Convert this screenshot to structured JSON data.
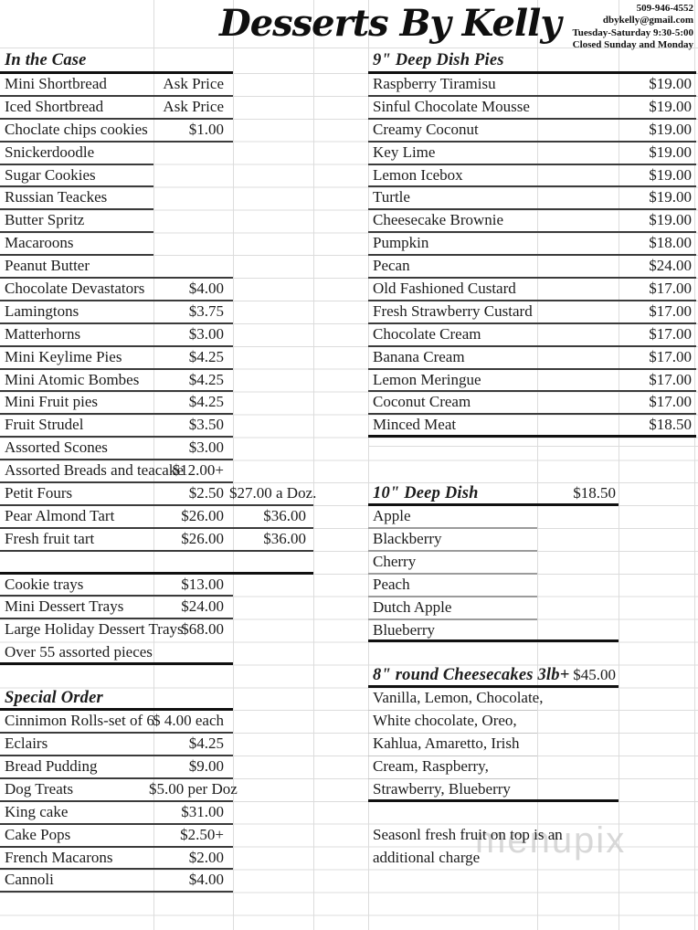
{
  "title": "Desserts By Kelly",
  "contact": {
    "phone": "509-946-4552",
    "email": "dbykelly@gmail.com",
    "hours": "Tuesday-Saturday 9:30-5:00",
    "closed": "Closed Sunday and Monday"
  },
  "watermark": "menupix",
  "left": {
    "in_the_case": {
      "heading": "In the Case",
      "items": [
        {
          "name": "Mini Shortbread",
          "price": "Ask Price",
          "u": "n255"
        },
        {
          "name": "Iced Shortbread",
          "price": "Ask Price",
          "u": "n255"
        },
        {
          "name": "Choclate chips cookies",
          "price": "$1.00",
          "u": "n255"
        },
        {
          "name": "Snickerdoodle",
          "u": "n168"
        },
        {
          "name": "Sugar Cookies",
          "u": "n168"
        },
        {
          "name": "Russian Teackes",
          "u": "n168"
        },
        {
          "name": "Butter Spritz",
          "u": "n168"
        },
        {
          "name": "Macaroons",
          "u": "n168"
        },
        {
          "name": "Peanut Butter",
          "u": "n255"
        },
        {
          "name": "Chocolate Devastators",
          "price": "$4.00",
          "u": "n255"
        },
        {
          "name": "Lamingtons",
          "price": "$3.75",
          "u": "n255"
        },
        {
          "name": "Matterhorns",
          "price": "$3.00",
          "u": "n255"
        },
        {
          "name": "Mini Keylime Pies",
          "price": "$4.25",
          "u": "n255"
        },
        {
          "name": "Mini Atomic Bombes",
          "price": "$4.25",
          "u": "n255"
        },
        {
          "name": "Mini Fruit pies",
          "price": "$4.25",
          "u": "n255"
        },
        {
          "name": "Fruit Strudel",
          "price": "$3.50",
          "u": "n255"
        },
        {
          "name": "Assorted Scones",
          "price": "$3.00",
          "u": "n255"
        },
        {
          "name": "Assorted Breads and teacake",
          "price": "$12.00+",
          "u": "n255"
        },
        {
          "name": "Petit Fours",
          "price": "$2.50",
          "price2": "$27.00 a Doz.",
          "u": "n343"
        },
        {
          "name": "Pear Almond Tart",
          "price": "$26.00",
          "price2": "$36.00",
          "u": "n343"
        },
        {
          "name": "Fresh fruit tart",
          "price": "$26.00",
          "price2": "$36.00",
          "u": "n343"
        },
        {
          "name": "",
          "u": "k343"
        },
        {
          "name": "Cookie trays",
          "price": "$13.00",
          "u": "n255"
        },
        {
          "name": "Mini Dessert Trays",
          "price": "$24.00",
          "u": "n255"
        },
        {
          "name": "Large Holiday Dessert Trays",
          "price": "$68.00",
          "u": "none"
        },
        {
          "name": "Over 55 assorted pieces",
          "u": "k255"
        }
      ]
    },
    "special_order": {
      "heading": "Special Order",
      "items": [
        {
          "name": "Cinnimon Rolls-set of 6",
          "price": "$ 4.00 each",
          "u": "n255"
        },
        {
          "name": "Eclairs",
          "price": "$4.25",
          "u": "n255"
        },
        {
          "name": "Bread Pudding",
          "price": "$9.00",
          "u": "n255"
        },
        {
          "name": "Dog Treats",
          "price": "$5.00 per Doz",
          "u": "n255"
        },
        {
          "name": "King cake",
          "price": "$31.00",
          "u": "n255"
        },
        {
          "name": "Cake Pops",
          "price": "$2.50+",
          "u": "n255"
        },
        {
          "name": "French Macarons",
          "price": "$2.00",
          "u": "n255"
        },
        {
          "name": "Cannoli",
          "price": "$4.00",
          "u": "n255"
        }
      ]
    }
  },
  "right": {
    "pies": {
      "heading": "9\" Deep Dish Pies",
      "items": [
        {
          "name": "Raspberry Tiramisu",
          "price": "$19.00",
          "u": "nfull"
        },
        {
          "name": "Sinful Chocolate Mousse",
          "price": "$19.00",
          "u": "nfull"
        },
        {
          "name": "Creamy Coconut",
          "price": "$19.00",
          "u": "nfull"
        },
        {
          "name": "Key Lime",
          "price": "$19.00",
          "u": "nfull"
        },
        {
          "name": "Lemon Icebox",
          "price": "$19.00",
          "u": "nfull"
        },
        {
          "name": "Turtle",
          "price": "$19.00",
          "u": "nfull"
        },
        {
          "name": "Cheesecake Brownie",
          "price": "$19.00",
          "u": "nfull"
        },
        {
          "name": "Pumpkin",
          "price": "$18.00",
          "u": "nfull"
        },
        {
          "name": "Pecan",
          "price": "$24.00",
          "u": "nfull"
        },
        {
          "name": "Old Fashioned Custard",
          "price": "$17.00",
          "u": "nfull"
        },
        {
          "name": "Fresh Strawberry Custard",
          "price": "$17.00",
          "u": "nfull"
        },
        {
          "name": "Chocolate Cream",
          "price": "$17.00",
          "u": "nfull"
        },
        {
          "name": "Banana Cream",
          "price": "$17.00",
          "u": "nfull"
        },
        {
          "name": "Lemon Meringue",
          "price": "$17.00",
          "u": "nfull"
        },
        {
          "name": "Coconut Cream",
          "price": "$17.00",
          "u": "nfull"
        },
        {
          "name": "Minced Meat",
          "price": "$18.50",
          "u": "kfull"
        }
      ]
    },
    "deep_dish_10": {
      "heading": "10\" Deep Dish",
      "price": "$18.50",
      "items": [
        {
          "name": "Apple",
          "u": "mshort"
        },
        {
          "name": "Blackberry",
          "u": "mshort"
        },
        {
          "name": "Cherry",
          "u": "mshort"
        },
        {
          "name": "Peach",
          "u": "mshort"
        },
        {
          "name": "Dutch Apple",
          "u": "mshort"
        },
        {
          "name": "Blueberry",
          "u": "kmid"
        }
      ]
    },
    "cheesecakes": {
      "heading": "8\" round Cheesecakes 3lb+",
      "price": "$45.00",
      "items": [
        {
          "name": "Vanilla, Lemon, Chocolate,",
          "u": "lshort"
        },
        {
          "name": "White chocolate, Oreo,",
          "u": "lshort"
        },
        {
          "name": "Kahlua, Amaretto, Irish",
          "u": "lshort"
        },
        {
          "name": "Cream, Raspberry,",
          "u": "lshort"
        },
        {
          "name": "Strawberry, Blueberry",
          "u": "kmid"
        }
      ]
    },
    "note": [
      "Seasonl fresh fruit on top is an",
      "additional charge"
    ]
  }
}
